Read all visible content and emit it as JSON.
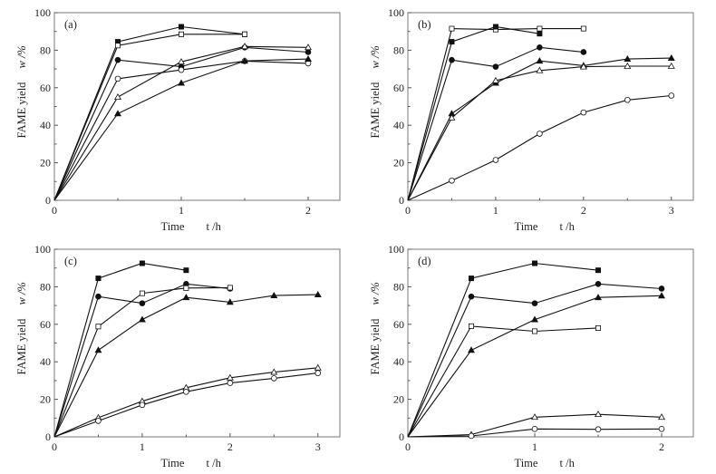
{
  "chart_data": [
    {
      "type": "line",
      "panel_label": "(a)",
      "xlabel": "Time",
      "xlabel_symbol": "t /h",
      "ylabel": "FAME yield",
      "ylabel_symbol": "w /%",
      "xlim": [
        0,
        2.25
      ],
      "ylim": [
        0,
        100
      ],
      "xticks": [
        0,
        1,
        2
      ],
      "yticks": [
        0,
        20,
        40,
        60,
        80,
        100
      ],
      "grid": false,
      "series": [
        {
          "name": "filled-square",
          "marker": "square",
          "filled": true,
          "x": [
            0,
            0.5,
            1,
            1.5
          ],
          "y": [
            0,
            84.5,
            92.5,
            88.5
          ]
        },
        {
          "name": "open-square",
          "marker": "square",
          "filled": false,
          "x": [
            0,
            0.5,
            1,
            1.5
          ],
          "y": [
            0,
            82.5,
            88.5,
            88.5
          ]
        },
        {
          "name": "filled-circle",
          "marker": "circle",
          "filled": true,
          "x": [
            0,
            0.5,
            1,
            1.5,
            2
          ],
          "y": [
            0,
            74.8,
            71.2,
            81.5,
            79
          ]
        },
        {
          "name": "open-circle",
          "marker": "circle",
          "filled": false,
          "x": [
            0,
            0.5,
            1,
            1.5,
            2
          ],
          "y": [
            0,
            64.8,
            69.5,
            74.2,
            73
          ]
        },
        {
          "name": "open-triangle",
          "marker": "triangle",
          "filled": false,
          "x": [
            0,
            0.5,
            1,
            1.5,
            2
          ],
          "y": [
            0,
            55,
            73.8,
            82,
            81.5
          ]
        },
        {
          "name": "filled-triangle",
          "marker": "triangle",
          "filled": true,
          "x": [
            0,
            0.5,
            1,
            1.5,
            2
          ],
          "y": [
            0,
            46.2,
            62.5,
            74.3,
            75.3
          ]
        }
      ]
    },
    {
      "type": "line",
      "panel_label": "(b)",
      "xlabel": "Time",
      "xlabel_symbol": "t /h",
      "ylabel": "FAME yield",
      "ylabel_symbol": "w /%",
      "xlim": [
        0,
        3.25
      ],
      "ylim": [
        0,
        100
      ],
      "xticks": [
        0,
        1,
        2,
        3
      ],
      "yticks": [
        0,
        20,
        40,
        60,
        80,
        100
      ],
      "grid": false,
      "series": [
        {
          "name": "open-square",
          "marker": "square",
          "filled": false,
          "x": [
            0,
            0.5,
            1,
            1.5,
            2
          ],
          "y": [
            0,
            91.5,
            91,
            91.5,
            91.5
          ]
        },
        {
          "name": "filled-square",
          "marker": "square",
          "filled": true,
          "x": [
            0,
            0.5,
            1,
            1.5
          ],
          "y": [
            0,
            84.5,
            92.5,
            88.8
          ]
        },
        {
          "name": "filled-circle",
          "marker": "circle",
          "filled": true,
          "x": [
            0,
            0.5,
            1,
            1.5,
            2
          ],
          "y": [
            0,
            74.8,
            71.2,
            81.5,
            79
          ]
        },
        {
          "name": "filled-triangle",
          "marker": "triangle",
          "filled": true,
          "x": [
            0,
            0.5,
            1,
            1.5,
            2,
            2.5,
            3
          ],
          "y": [
            0,
            46.2,
            62.5,
            74.3,
            71.8,
            75.3,
            75.8
          ]
        },
        {
          "name": "open-triangle",
          "marker": "triangle",
          "filled": false,
          "x": [
            0,
            0.5,
            1,
            1.5,
            2,
            2.5,
            3
          ],
          "y": [
            0,
            44,
            63.8,
            69.2,
            71.2,
            71.5,
            71.5
          ]
        },
        {
          "name": "open-circle",
          "marker": "circle",
          "filled": false,
          "x": [
            0,
            0.5,
            1,
            1.5,
            2,
            2.5,
            3
          ],
          "y": [
            0,
            10.5,
            21.5,
            35.5,
            46.8,
            53.5,
            55.8
          ]
        }
      ]
    },
    {
      "type": "line",
      "panel_label": "(c)",
      "xlabel": "Time",
      "xlabel_symbol": "t /h",
      "ylabel": "FAME yield",
      "ylabel_symbol": "w /%",
      "xlim": [
        0,
        3.25
      ],
      "ylim": [
        0,
        100
      ],
      "xticks": [
        0,
        1,
        2,
        3
      ],
      "yticks": [
        0,
        20,
        40,
        60,
        80,
        100
      ],
      "grid": false,
      "series": [
        {
          "name": "filled-square",
          "marker": "square",
          "filled": true,
          "x": [
            0,
            0.5,
            1,
            1.5
          ],
          "y": [
            0,
            84.5,
            92.5,
            88.8
          ]
        },
        {
          "name": "filled-circle",
          "marker": "circle",
          "filled": true,
          "x": [
            0,
            0.5,
            1,
            1.5,
            2
          ],
          "y": [
            0,
            74.8,
            71.2,
            81.5,
            79
          ]
        },
        {
          "name": "open-square",
          "marker": "square",
          "filled": false,
          "x": [
            0,
            0.5,
            1,
            1.5,
            2
          ],
          "y": [
            0,
            58.8,
            76.5,
            79.3,
            79.5
          ]
        },
        {
          "name": "filled-triangle",
          "marker": "triangle",
          "filled": true,
          "x": [
            0,
            0.5,
            1,
            1.5,
            2,
            2.5,
            3
          ],
          "y": [
            0,
            46.2,
            62.5,
            74.3,
            71.8,
            75.3,
            75.8
          ]
        },
        {
          "name": "open-triangle",
          "marker": "triangle",
          "filled": false,
          "x": [
            0,
            0.5,
            1,
            1.5,
            2,
            2.5,
            3
          ],
          "y": [
            0,
            10.2,
            19,
            26.2,
            31.5,
            34.5,
            36.8
          ]
        },
        {
          "name": "open-circle",
          "marker": "circle",
          "filled": false,
          "x": [
            0,
            0.5,
            1,
            1.5,
            2,
            2.5,
            3
          ],
          "y": [
            0,
            8.5,
            17,
            24,
            28.7,
            31.2,
            34
          ]
        }
      ]
    },
    {
      "type": "line",
      "panel_label": "(d)",
      "xlabel": "Time",
      "xlabel_symbol": "t /h",
      "ylabel": "FAME yield",
      "ylabel_symbol": "w /%",
      "xlim": [
        0,
        2.25
      ],
      "ylim": [
        0,
        100
      ],
      "xticks": [
        0,
        1,
        2
      ],
      "yticks": [
        0,
        20,
        40,
        60,
        80,
        100
      ],
      "grid": false,
      "series": [
        {
          "name": "filled-square",
          "marker": "square",
          "filled": true,
          "x": [
            0,
            0.5,
            1,
            1.5
          ],
          "y": [
            0,
            84.5,
            92.5,
            88.8
          ]
        },
        {
          "name": "filled-circle",
          "marker": "circle",
          "filled": true,
          "x": [
            0,
            0.5,
            1,
            1.5,
            2
          ],
          "y": [
            0,
            74.8,
            71.2,
            81.5,
            79
          ]
        },
        {
          "name": "filled-triangle",
          "marker": "triangle",
          "filled": true,
          "x": [
            0,
            0.5,
            1,
            1.5,
            2
          ],
          "y": [
            0,
            46.2,
            62.5,
            74.3,
            75.2
          ]
        },
        {
          "name": "open-square",
          "marker": "square",
          "filled": false,
          "x": [
            0,
            0.5,
            1,
            1.5
          ],
          "y": [
            0,
            59,
            56.3,
            58
          ]
        },
        {
          "name": "open-triangle",
          "marker": "triangle",
          "filled": false,
          "x": [
            0,
            0.5,
            1,
            1.5,
            2
          ],
          "y": [
            0,
            1.2,
            10.5,
            12,
            10.5
          ]
        },
        {
          "name": "open-circle",
          "marker": "circle",
          "filled": false,
          "x": [
            0,
            0.5,
            1,
            1.5,
            2
          ],
          "y": [
            0,
            0.5,
            4.2,
            4,
            4.2
          ]
        }
      ]
    }
  ],
  "colors": {
    "line": "#111111",
    "frame": "#7a7a7a",
    "text": "#222222",
    "background": "#ffffff"
  }
}
